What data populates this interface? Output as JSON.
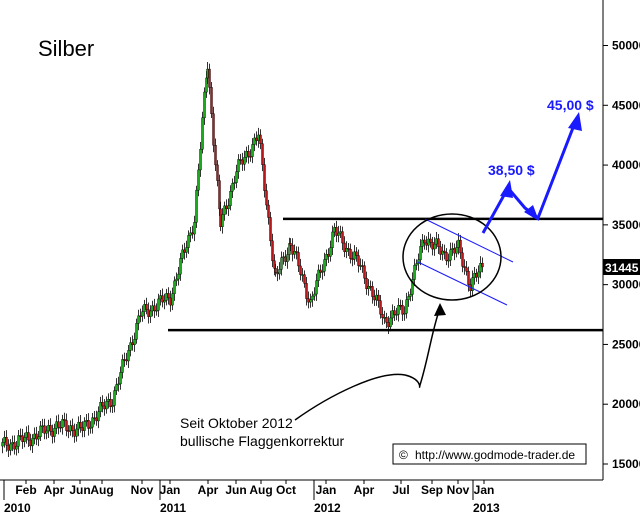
{
  "chart_data": {
    "type": "candlestick",
    "title": "Silber",
    "y_axis": {
      "ticks": [
        15000,
        20000,
        25000,
        30000,
        35000,
        40000,
        45000,
        50000
      ],
      "labels": [
        "15000",
        "20000",
        "25000",
        "30000",
        "35000",
        "40000",
        "45000",
        "50000"
      ],
      "range": [
        14000,
        52500
      ],
      "side": "right"
    },
    "x_axis": {
      "month_labels": [
        "Feb",
        "Apr",
        "Jun",
        "Aug",
        "Nov",
        "Jan",
        "Apr",
        "Jun",
        "Aug",
        "Oct",
        "Jan",
        "Apr",
        "Jul",
        "Sep",
        "Nov",
        "Jan"
      ],
      "year_labels": [
        "2010",
        "2011",
        "2012",
        "2013"
      ]
    },
    "last_price": "31445",
    "series": [
      {
        "x": [
          "2010-01",
          "2010-03",
          "2010-05",
          "2010-07",
          "2010-09",
          "2010-11",
          "2011-01",
          "2011-03",
          "2011-04-28",
          "2011-06",
          "2011-07",
          "2011-08-25",
          "2011-09",
          "2011-10",
          "2011-12",
          "2012-02",
          "2012-04",
          "2012-06",
          "2012-08",
          "2012-09",
          "2012-10",
          "2012-11",
          "2012-12",
          "2013-01"
        ],
        "close": [
          16500,
          17200,
          18200,
          17900,
          20500,
          27500,
          29000,
          35500,
          48500,
          35000,
          39500,
          42500,
          30500,
          33500,
          28500,
          34500,
          31500,
          27000,
          28000,
          34000,
          32500,
          33000,
          30000,
          31445
        ]
      }
    ],
    "lines": {
      "resistance": 35500,
      "support": 26200
    },
    "targets": [
      "38,50 $",
      "45,00 $"
    ],
    "annotation": [
      "Seit Oktober 2012",
      "bullische Flaggenkorrektur"
    ],
    "source": "http://www.godmode-trader.de",
    "colors": {
      "up": "#1fa81f",
      "down": "#b3191d",
      "target": "#1a1aff",
      "channel": "#1a1aff",
      "label_bg": "#000000",
      "label_fg": "#ffffff"
    }
  }
}
